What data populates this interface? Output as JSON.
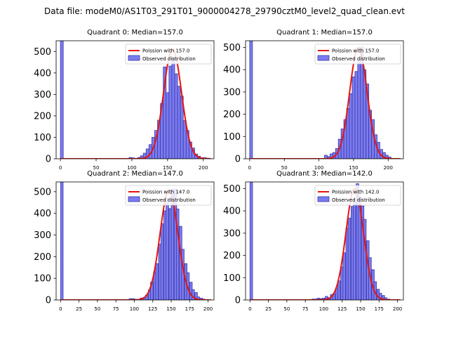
{
  "figure": {
    "suptitle": "Data file: modeM0/AS1T03_291T01_9000004278_29790cztM0_level2_quad_clean.evt"
  },
  "colors": {
    "hist_fill": "#7b7bf0",
    "hist_edge": "#3a3aa8",
    "poisson_line": "#e8140c"
  },
  "chart_data": [
    {
      "type": "bar",
      "title": "Quadrant 0: Median=157.0",
      "xlim": [
        -6,
        215
      ],
      "ylim": [
        0,
        550
      ],
      "xticks": [
        0,
        50,
        100,
        150,
        200
      ],
      "yticks": [
        0,
        100,
        200,
        300,
        400,
        500
      ],
      "bin_width": 4,
      "bins": [
        [
          0,
          550
        ],
        [
          96,
          6
        ],
        [
          100,
          4
        ],
        [
          104,
          2
        ],
        [
          108,
          6
        ],
        [
          112,
          14
        ],
        [
          116,
          26
        ],
        [
          120,
          46
        ],
        [
          124,
          66
        ],
        [
          128,
          100
        ],
        [
          132,
          132
        ],
        [
          136,
          180
        ],
        [
          140,
          258
        ],
        [
          144,
          428
        ],
        [
          148,
          308
        ],
        [
          152,
          432
        ],
        [
          156,
          472
        ],
        [
          160,
          396
        ],
        [
          164,
          338
        ],
        [
          168,
          292
        ],
        [
          172,
          178
        ],
        [
          176,
          132
        ],
        [
          180,
          78
        ],
        [
          184,
          50
        ],
        [
          188,
          22
        ],
        [
          192,
          12
        ],
        [
          196,
          5
        ],
        [
          200,
          5
        ],
        [
          204,
          3
        ]
      ],
      "poisson_mean": 157.0,
      "poisson_amplitude": 512,
      "legend": {
        "poisson": "Poission with 157.0",
        "observed": "Observed distribution"
      }
    },
    {
      "type": "bar",
      "title": "Quadrant 1: Median=157.0",
      "xlim": [
        -6,
        222
      ],
      "ylim": [
        0,
        530
      ],
      "xticks": [
        0,
        50,
        100,
        150,
        200
      ],
      "yticks": [
        0,
        100,
        200,
        300,
        400,
        500
      ],
      "bin_width": 4,
      "bins": [
        [
          0,
          530
        ],
        [
          108,
          16
        ],
        [
          112,
          10
        ],
        [
          116,
          22
        ],
        [
          120,
          28
        ],
        [
          124,
          46
        ],
        [
          128,
          88
        ],
        [
          132,
          134
        ],
        [
          136,
          176
        ],
        [
          140,
          226
        ],
        [
          144,
          292
        ],
        [
          148,
          368
        ],
        [
          152,
          392
        ],
        [
          156,
          442
        ],
        [
          160,
          502
        ],
        [
          164,
          400
        ],
        [
          168,
          336
        ],
        [
          172,
          218
        ],
        [
          176,
          176
        ],
        [
          180,
          108
        ],
        [
          184,
          74
        ],
        [
          188,
          42
        ],
        [
          192,
          28
        ],
        [
          196,
          16
        ],
        [
          200,
          8
        ]
      ],
      "poisson_mean": 157.0,
      "poisson_amplitude": 500,
      "legend": {
        "poisson": "Poission with 157.0",
        "observed": "Observed distribution"
      }
    },
    {
      "type": "bar",
      "title": "Quadrant 2: Median=147.0",
      "xlim": [
        -6,
        208
      ],
      "ylim": [
        0,
        545
      ],
      "xticks": [
        0,
        25,
        50,
        75,
        100,
        125,
        150,
        175,
        200
      ],
      "yticks": [
        0,
        100,
        200,
        300,
        400,
        500
      ],
      "bin_width": 3.5,
      "bins": [
        [
          0,
          545
        ],
        [
          93,
          6
        ],
        [
          97,
          6
        ],
        [
          101,
          3
        ],
        [
          105,
          3
        ],
        [
          108,
          9
        ],
        [
          112,
          12
        ],
        [
          115,
          22
        ],
        [
          119,
          46
        ],
        [
          122,
          82
        ],
        [
          126,
          130
        ],
        [
          129,
          168
        ],
        [
          133,
          258
        ],
        [
          136,
          352
        ],
        [
          140,
          412
        ],
        [
          143,
          470
        ],
        [
          147,
          422
        ],
        [
          150,
          510
        ],
        [
          154,
          512
        ],
        [
          157,
          420
        ],
        [
          161,
          340
        ],
        [
          164,
          234
        ],
        [
          168,
          168
        ],
        [
          171,
          126
        ],
        [
          175,
          82
        ],
        [
          178,
          48
        ],
        [
          182,
          34
        ],
        [
          185,
          14
        ],
        [
          189,
          8
        ],
        [
          192,
          4
        ],
        [
          196,
          2
        ]
      ],
      "poisson_mean": 147.0,
      "poisson_amplitude": 506,
      "legend": {
        "poisson": "Poission with 147.0",
        "observed": "Observed distribution"
      }
    },
    {
      "type": "bar",
      "title": "Quadrant 3: Median=142.0",
      "xlim": [
        -6,
        208
      ],
      "ylim": [
        0,
        530
      ],
      "xticks": [
        0,
        25,
        50,
        75,
        100,
        125,
        150,
        175,
        200
      ],
      "yticks": [
        0,
        100,
        200,
        300,
        400,
        500
      ],
      "bin_width": 3.5,
      "bins": [
        [
          0,
          530
        ],
        [
          84,
          4
        ],
        [
          88,
          4
        ],
        [
          91,
          8
        ],
        [
          95,
          6
        ],
        [
          98,
          8
        ],
        [
          102,
          16
        ],
        [
          105,
          10
        ],
        [
          109,
          24
        ],
        [
          112,
          28
        ],
        [
          116,
          54
        ],
        [
          119,
          86
        ],
        [
          123,
          148
        ],
        [
          126,
          212
        ],
        [
          130,
          322
        ],
        [
          133,
          368
        ],
        [
          137,
          420
        ],
        [
          140,
          440
        ],
        [
          144,
          522
        ],
        [
          147,
          464
        ],
        [
          151,
          422
        ],
        [
          154,
          362
        ],
        [
          158,
          266
        ],
        [
          161,
          190
        ],
        [
          165,
          136
        ],
        [
          168,
          82
        ],
        [
          172,
          48
        ],
        [
          175,
          30
        ],
        [
          179,
          20
        ],
        [
          182,
          10
        ],
        [
          186,
          4
        ]
      ],
      "poisson_mean": 142.0,
      "poisson_amplitude": 500,
      "legend": {
        "poisson": "Poission with 142.0",
        "observed": "Observed distribution"
      }
    }
  ]
}
